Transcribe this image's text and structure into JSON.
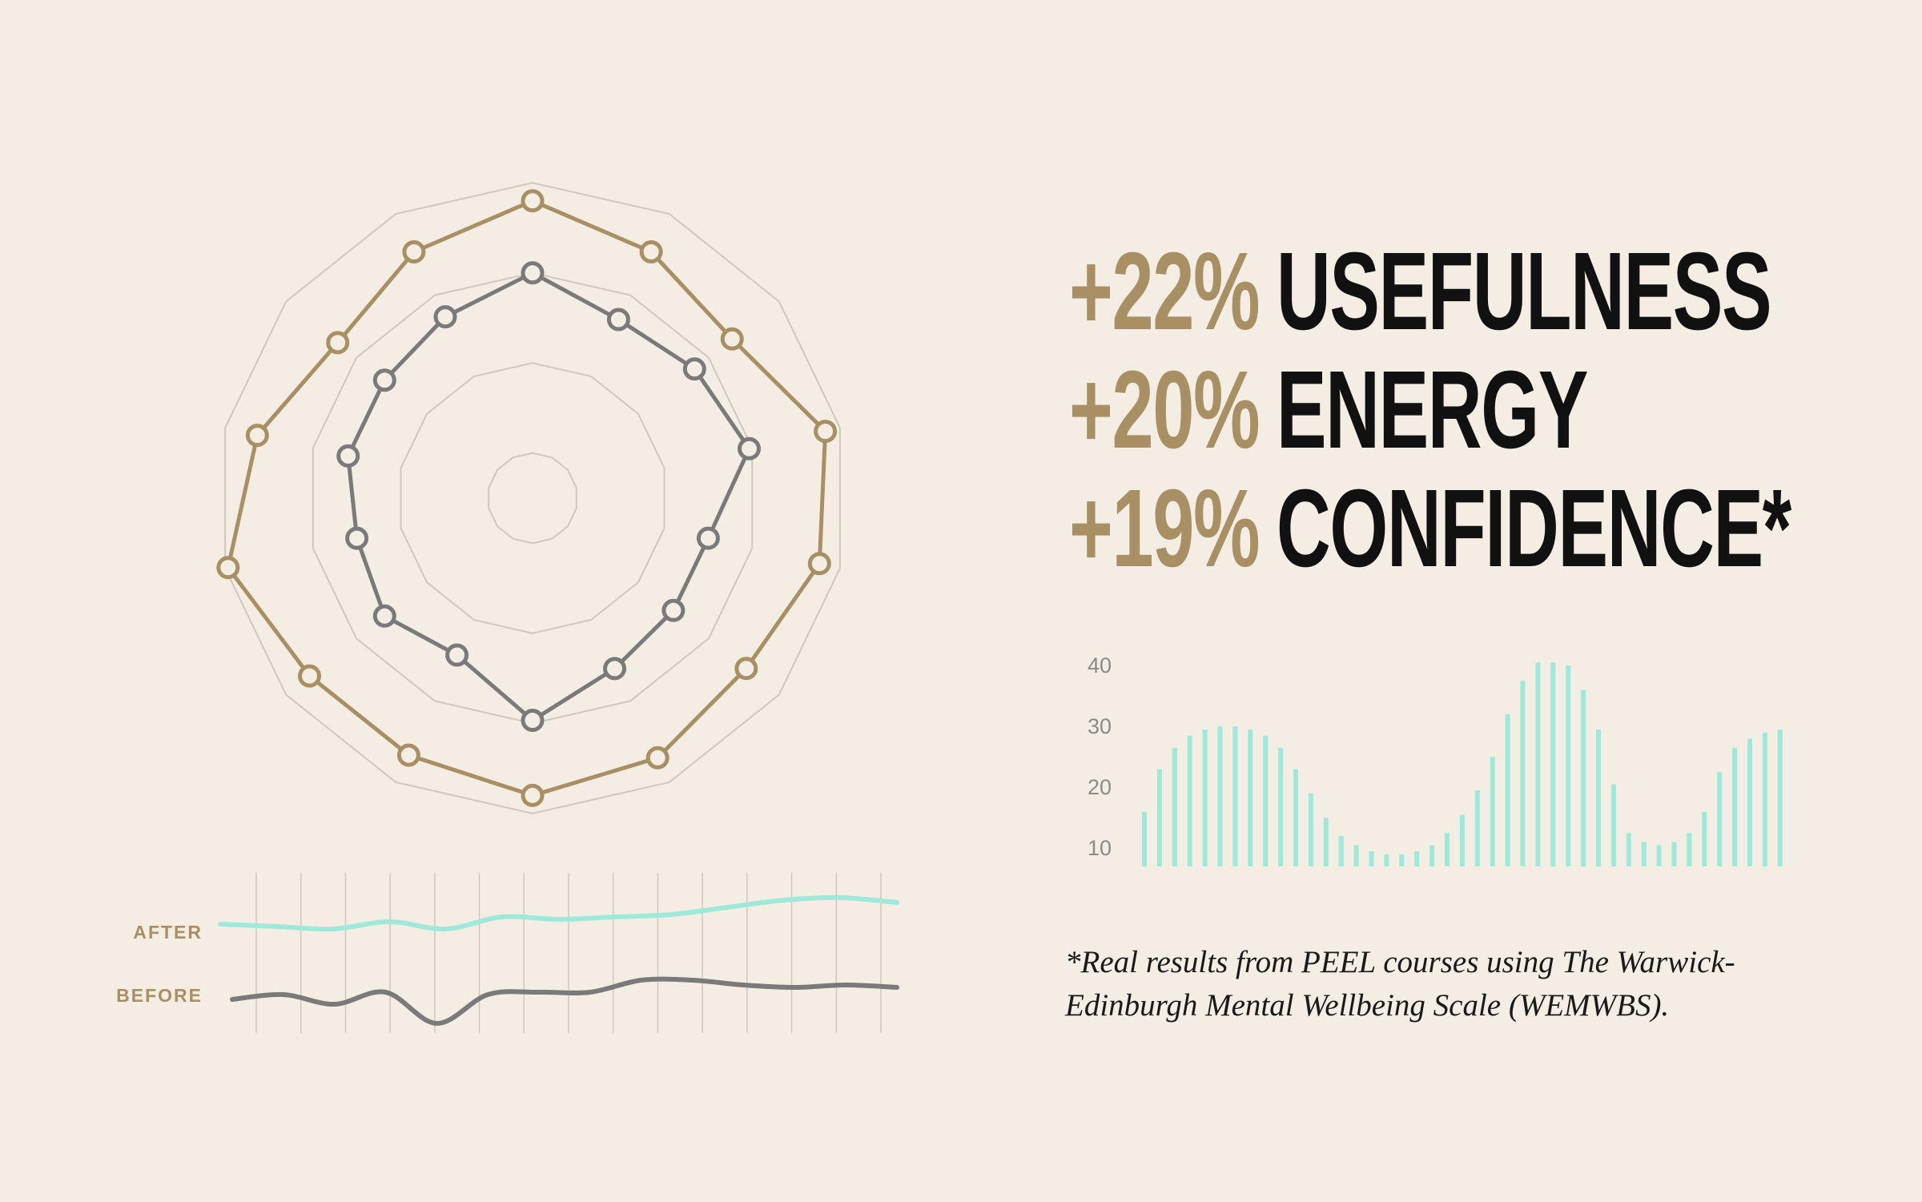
{
  "colors": {
    "background": "#f3ede3",
    "gold": "#a88f64",
    "dark_line": "#7a7a7a",
    "mint": "#9ee9da",
    "grid": "#cfc8bf",
    "text_dark": "#111111"
  },
  "stats": [
    {
      "percent": "+22%",
      "label": "USEFULNESS"
    },
    {
      "percent": "+20%",
      "label": "ENERGY"
    },
    {
      "percent": "+19%",
      "label": "CONFIDENCE*"
    }
  ],
  "footnote": {
    "line1": "*Real results from PEEL courses using The Warwick-",
    "line2": "Edinburgh Mental Wellbeing Scale (WEMWBS)."
  },
  "chart_data": [
    {
      "type": "radar",
      "axes_count": 14,
      "rings": [
        0.15,
        0.45,
        0.75,
        1.05
      ],
      "series": [
        {
          "values": [
            0.99,
            0.91,
            0.85,
            1.0,
            0.98,
            0.91,
            0.96,
            0.99,
            0.95,
            0.95,
            1.04,
            0.94,
            0.83,
            0.91
          ]
        },
        {
          "values": [
            0.75,
            0.66,
            0.69,
            0.74,
            0.6,
            0.6,
            0.63,
            0.74,
            0.58,
            0.63,
            0.6,
            0.63,
            0.63,
            0.67
          ]
        }
      ]
    },
    {
      "type": "line",
      "x_count": 15,
      "series": [
        {
          "name": "AFTER",
          "values": [
            0.3,
            0.25,
            0.2,
            0.35,
            0.2,
            0.45,
            0.4,
            0.45,
            0.5,
            0.65,
            0.8,
            0.85,
            0.75
          ]
        },
        {
          "name": "BEFORE",
          "values": [
            0.2,
            0.3,
            0.1,
            0.35,
            -0.3,
            0.3,
            0.35,
            0.35,
            0.6,
            0.6,
            0.5,
            0.45,
            0.5,
            0.45
          ]
        }
      ]
    },
    {
      "type": "bar",
      "yticks": [
        "10",
        "20",
        "30",
        "40"
      ],
      "ylim": [
        7,
        43
      ],
      "values": [
        16,
        23,
        26.5,
        28.5,
        29.5,
        30,
        30,
        29.5,
        28.5,
        26.5,
        23,
        19,
        15,
        12,
        10.5,
        9.5,
        9,
        9,
        9.5,
        10.5,
        12.5,
        15.5,
        19.5,
        25,
        32,
        37.5,
        40.5,
        40.5,
        40,
        36,
        29.5,
        20.5,
        12.5,
        11,
        10.5,
        11,
        12.5,
        16,
        22.5,
        26.5,
        28,
        29,
        29.5
      ]
    }
  ]
}
